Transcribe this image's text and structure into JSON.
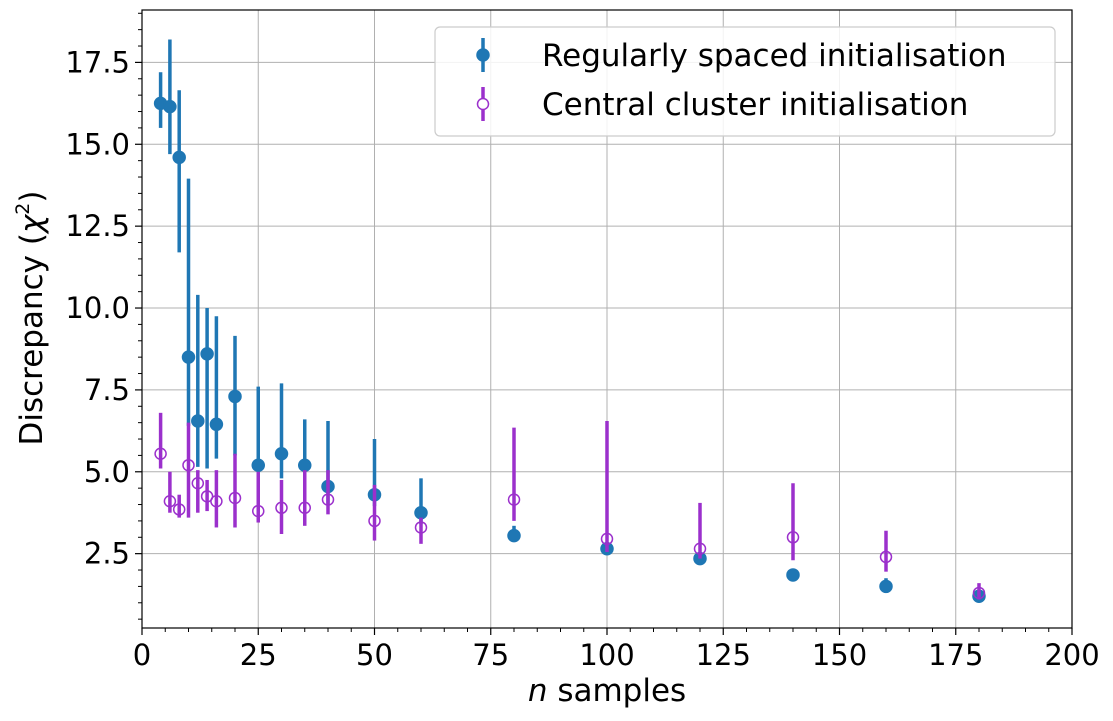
{
  "chart_data": {
    "type": "scatter",
    "xlabel_var": "n",
    "xlabel_rest": " samples",
    "ylabel_main": "Discrepancy (",
    "ylabel_sym": "χ",
    "ylabel_sup": "2",
    "ylabel_close": ")",
    "xlim": [
      0,
      200
    ],
    "ylim": [
      0.23,
      19.1
    ],
    "xticks": [
      0,
      25,
      50,
      75,
      100,
      125,
      150,
      175,
      200
    ],
    "yticks": [
      2.5,
      5.0,
      7.5,
      10.0,
      12.5,
      15.0,
      17.5
    ],
    "ytick_labels": [
      "2.5",
      "5.0",
      "7.5",
      "10.0",
      "12.5",
      "15.0",
      "17.5"
    ],
    "grid": true,
    "legend_position": "top-right",
    "series": [
      {
        "name": "Regularly spaced initialisation",
        "color": "#1f77b4",
        "marker": "filled-circle",
        "points": [
          {
            "x": 4,
            "y": 16.25,
            "lo": 15.5,
            "hi": 17.2
          },
          {
            "x": 6,
            "y": 16.15,
            "lo": 14.7,
            "hi": 18.2
          },
          {
            "x": 8,
            "y": 14.6,
            "lo": 11.7,
            "hi": 16.65
          },
          {
            "x": 10,
            "y": 8.5,
            "lo": 6.4,
            "hi": 13.95
          },
          {
            "x": 12,
            "y": 6.55,
            "lo": 5.15,
            "hi": 10.4
          },
          {
            "x": 14,
            "y": 8.6,
            "lo": 5.1,
            "hi": 10.0
          },
          {
            "x": 16,
            "y": 6.45,
            "lo": 5.4,
            "hi": 9.75
          },
          {
            "x": 20,
            "y": 7.3,
            "lo": 5.5,
            "hi": 9.15
          },
          {
            "x": 25,
            "y": 5.2,
            "lo": 4.6,
            "hi": 7.6
          },
          {
            "x": 30,
            "y": 5.55,
            "lo": 4.8,
            "hi": 7.7
          },
          {
            "x": 35,
            "y": 5.2,
            "lo": 4.6,
            "hi": 6.6
          },
          {
            "x": 40,
            "y": 4.55,
            "lo": 4.0,
            "hi": 6.55
          },
          {
            "x": 50,
            "y": 4.3,
            "lo": 3.95,
            "hi": 6.0
          },
          {
            "x": 60,
            "y": 3.75,
            "lo": 3.4,
            "hi": 4.8
          },
          {
            "x": 80,
            "y": 3.05,
            "lo": 2.9,
            "hi": 3.35
          },
          {
            "x": 100,
            "y": 2.65,
            "lo": 2.5,
            "hi": 2.85
          },
          {
            "x": 120,
            "y": 2.35,
            "lo": 2.25,
            "hi": 2.45
          },
          {
            "x": 140,
            "y": 1.85,
            "lo": 1.7,
            "hi": 2.0
          },
          {
            "x": 160,
            "y": 1.5,
            "lo": 1.3,
            "hi": 1.75
          },
          {
            "x": 180,
            "y": 1.2,
            "lo": 1.1,
            "hi": 1.3
          }
        ]
      },
      {
        "name": "Central cluster initialisation",
        "color": "#9b30cc",
        "marker": "open-circle",
        "points": [
          {
            "x": 4,
            "y": 5.55,
            "lo": 5.1,
            "hi": 6.8
          },
          {
            "x": 6,
            "y": 4.1,
            "lo": 3.75,
            "hi": 5.0
          },
          {
            "x": 8,
            "y": 3.85,
            "lo": 3.6,
            "hi": 4.3
          },
          {
            "x": 10,
            "y": 5.2,
            "lo": 3.6,
            "hi": 6.5
          },
          {
            "x": 12,
            "y": 4.65,
            "lo": 3.75,
            "hi": 5.05
          },
          {
            "x": 14,
            "y": 4.25,
            "lo": 3.8,
            "hi": 4.75
          },
          {
            "x": 16,
            "y": 4.1,
            "lo": 3.3,
            "hi": 5.05
          },
          {
            "x": 20,
            "y": 4.2,
            "lo": 3.3,
            "hi": 5.55
          },
          {
            "x": 25,
            "y": 3.8,
            "lo": 3.45,
            "hi": 5.0
          },
          {
            "x": 30,
            "y": 3.9,
            "lo": 3.1,
            "hi": 4.75
          },
          {
            "x": 35,
            "y": 3.9,
            "lo": 3.35,
            "hi": 5.05
          },
          {
            "x": 40,
            "y": 4.15,
            "lo": 3.7,
            "hi": 5.05
          },
          {
            "x": 50,
            "y": 3.5,
            "lo": 2.9,
            "hi": 4.6
          },
          {
            "x": 60,
            "y": 3.3,
            "lo": 2.8,
            "hi": 3.6
          },
          {
            "x": 80,
            "y": 4.15,
            "lo": 3.5,
            "hi": 6.35
          },
          {
            "x": 100,
            "y": 2.95,
            "lo": 2.55,
            "hi": 6.55
          },
          {
            "x": 120,
            "y": 2.65,
            "lo": 2.35,
            "hi": 4.05
          },
          {
            "x": 140,
            "y": 3.0,
            "lo": 2.3,
            "hi": 4.65
          },
          {
            "x": 160,
            "y": 2.4,
            "lo": 1.95,
            "hi": 3.2
          },
          {
            "x": 180,
            "y": 1.3,
            "lo": 1.1,
            "hi": 1.6
          }
        ]
      }
    ]
  }
}
